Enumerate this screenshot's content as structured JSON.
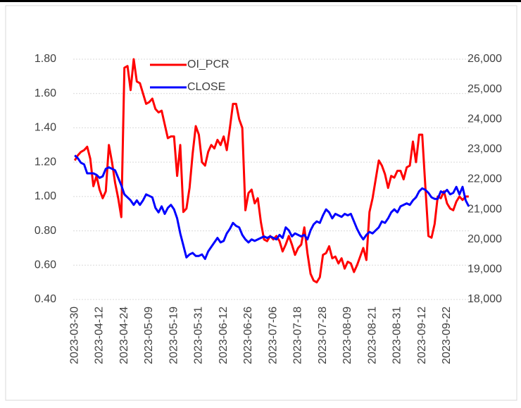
{
  "chart_data": {
    "type": "line",
    "categories": [
      "2023-03-30",
      null,
      null,
      null,
      null,
      null,
      null,
      null,
      "2023-04-12",
      null,
      null,
      null,
      null,
      null,
      null,
      null,
      "2023-04-24",
      null,
      null,
      null,
      null,
      null,
      null,
      null,
      "2023-05-09",
      null,
      null,
      null,
      null,
      null,
      null,
      null,
      "2023-05-19",
      null,
      null,
      null,
      null,
      null,
      null,
      null,
      "2023-05-31",
      null,
      null,
      null,
      null,
      null,
      null,
      null,
      "2023-06-12",
      null,
      null,
      null,
      null,
      null,
      null,
      null,
      "2023-06-26",
      null,
      null,
      null,
      null,
      null,
      null,
      null,
      "2023-07-06",
      null,
      null,
      null,
      null,
      null,
      null,
      null,
      "2023-07-18",
      null,
      null,
      null,
      null,
      null,
      null,
      null,
      "2023-07-28",
      null,
      null,
      null,
      null,
      null,
      null,
      null,
      "2023-08-09",
      null,
      null,
      null,
      null,
      null,
      null,
      null,
      "2023-08-21",
      null,
      null,
      null,
      null,
      null,
      null,
      null,
      "2023-08-31",
      null,
      null,
      null,
      null,
      null,
      null,
      null,
      "2023-09-12",
      null,
      null,
      null,
      null,
      null,
      null,
      null,
      "2023-09-22",
      null,
      null,
      null,
      null,
      null,
      null,
      null
    ],
    "series": [
      {
        "name": "OI_PCR",
        "color": "#ff0000",
        "axis": "y",
        "values": [
          1.21,
          1.24,
          1.26,
          1.27,
          1.29,
          1.22,
          1.06,
          1.12,
          1.04,
          0.99,
          1.03,
          1.3,
          1.2,
          1.08,
          0.99,
          0.88,
          1.75,
          1.76,
          1.62,
          1.8,
          1.67,
          1.66,
          1.6,
          1.54,
          1.55,
          1.57,
          1.51,
          1.49,
          1.5,
          1.42,
          1.34,
          1.35,
          1.35,
          1.12,
          1.3,
          0.91,
          0.93,
          1.05,
          1.25,
          1.41,
          1.36,
          1.2,
          1.18,
          1.26,
          1.3,
          1.28,
          1.33,
          1.3,
          1.35,
          1.27,
          1.4,
          1.54,
          1.54,
          1.45,
          1.4,
          0.92,
          1.02,
          1.04,
          0.96,
          0.99,
          0.85,
          0.75,
          0.74,
          0.77,
          0.75,
          0.77,
          0.74,
          0.68,
          0.72,
          0.77,
          0.72,
          0.66,
          0.7,
          0.72,
          0.82,
          0.67,
          0.55,
          0.51,
          0.5,
          0.53,
          0.66,
          0.67,
          0.71,
          0.64,
          0.65,
          0.61,
          0.64,
          0.58,
          0.62,
          0.61,
          0.56,
          0.6,
          0.65,
          0.7,
          0.63,
          0.91,
          0.99,
          1.1,
          1.21,
          1.18,
          1.13,
          1.05,
          1.12,
          1.11,
          1.15,
          1.15,
          1.1,
          1.17,
          1.18,
          1.32,
          1.2,
          1.36,
          1.36,
          1.06,
          0.77,
          0.76,
          0.84,
          1.0,
          0.99,
          1.03,
          0.96,
          0.93,
          0.92,
          0.97,
          1.0,
          0.98,
          1.0,
          1.0
        ]
      },
      {
        "name": "CLOSE",
        "color": "#0000ff",
        "axis": "y2",
        "values": [
          22800,
          22700,
          22550,
          22500,
          22200,
          22200,
          22200,
          22150,
          22050,
          22100,
          22350,
          22400,
          22350,
          22300,
          22050,
          21800,
          21500,
          21400,
          21300,
          21150,
          21300,
          21150,
          21300,
          21500,
          21450,
          21400,
          21050,
          20900,
          21100,
          20850,
          21050,
          21150,
          21000,
          20700,
          20200,
          19800,
          19400,
          19500,
          19550,
          19450,
          19450,
          19500,
          19350,
          19600,
          19750,
          19900,
          20050,
          19900,
          19950,
          20200,
          20350,
          20550,
          20450,
          20400,
          20150,
          20000,
          19900,
          20000,
          19950,
          20000,
          20050,
          20100,
          20050,
          20100,
          20050,
          20000,
          20150,
          20050,
          20400,
          20300,
          20100,
          20200,
          20150,
          20100,
          20150,
          20000,
          20300,
          20500,
          20600,
          20550,
          20800,
          21000,
          20900,
          20700,
          20850,
          20800,
          20750,
          20850,
          20800,
          20850,
          20600,
          20350,
          20150,
          20000,
          20150,
          20250,
          20200,
          20300,
          20400,
          20600,
          20550,
          20700,
          20900,
          21000,
          20900,
          21100,
          21150,
          21200,
          21150,
          21300,
          21400,
          21600,
          21700,
          21650,
          21550,
          21400,
          21350,
          21350,
          21600,
          21550,
          21650,
          21500,
          21550,
          21750,
          21500,
          21750,
          21300,
          21100
        ]
      }
    ],
    "ylim": [
      0.4,
      1.8
    ],
    "yticks": [
      {
        "value": 0.4,
        "label": "0.40"
      },
      {
        "value": 0.6,
        "label": "0.60"
      },
      {
        "value": 0.8,
        "label": "0.80"
      },
      {
        "value": 1.0,
        "label": "1.00"
      },
      {
        "value": 1.2,
        "label": "1.20"
      },
      {
        "value": 1.4,
        "label": "1.40"
      },
      {
        "value": 1.6,
        "label": "1.60"
      },
      {
        "value": 1.8,
        "label": "1.80"
      }
    ],
    "y2lim": [
      18000,
      26000
    ],
    "y2ticks": [
      {
        "value": 18000,
        "label": "18,000"
      },
      {
        "value": 19000,
        "label": "19,000"
      },
      {
        "value": 20000,
        "label": "20,000"
      },
      {
        "value": 21000,
        "label": "21,000"
      },
      {
        "value": 22000,
        "label": "22,000"
      },
      {
        "value": 23000,
        "label": "23,000"
      },
      {
        "value": 24000,
        "label": "24,000"
      },
      {
        "value": 25000,
        "label": "25,000"
      },
      {
        "value": 26000,
        "label": "26,000"
      }
    ],
    "grid": true
  }
}
